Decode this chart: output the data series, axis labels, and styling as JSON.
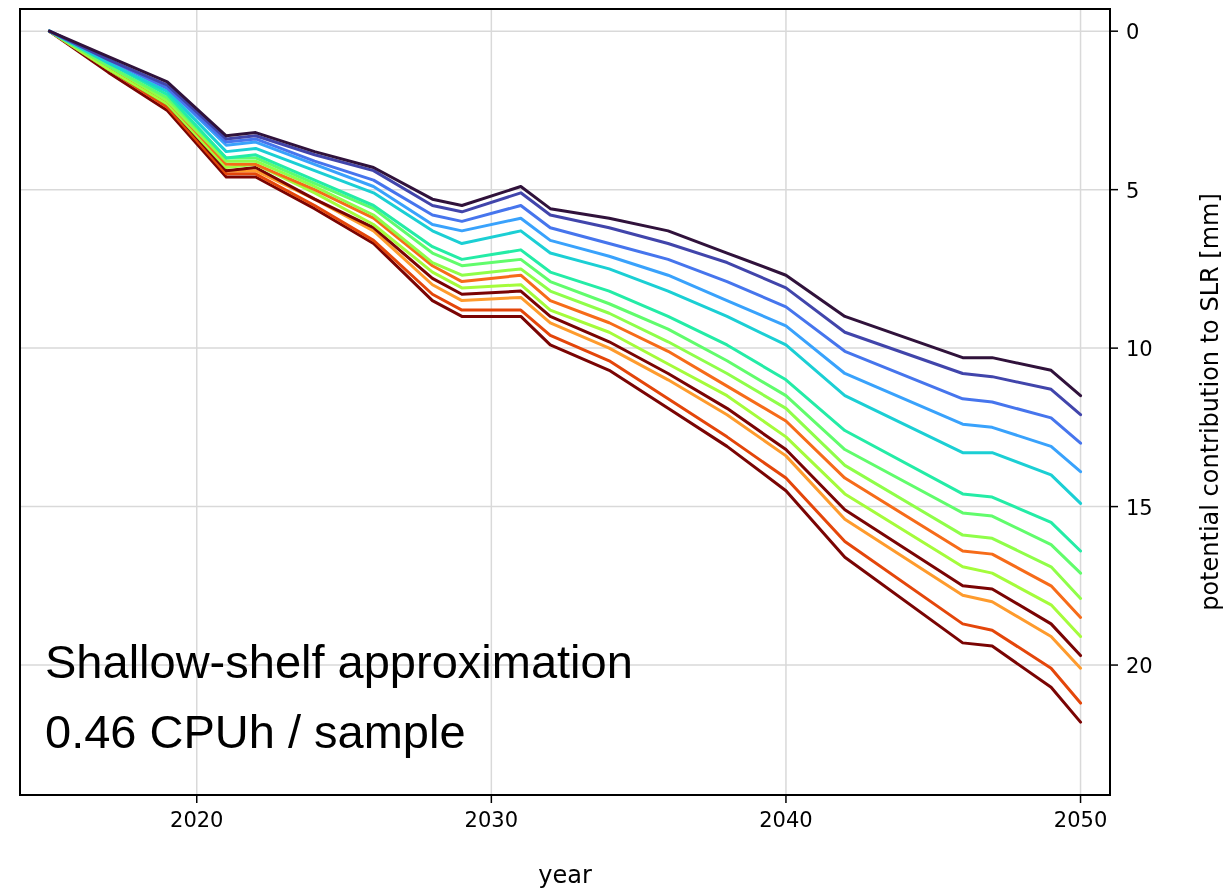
{
  "chart_data": {
    "type": "line",
    "xlabel": "year",
    "y2label": "potential contribution to SLR [mm]",
    "annotations": [
      "Shallow-shelf approximation",
      "0.46 CPUh / sample"
    ],
    "x": [
      2015,
      2017,
      2019,
      2021,
      2022,
      2024,
      2026,
      2028,
      2029,
      2031,
      2032,
      2034,
      2036,
      2038,
      2040,
      2042,
      2046,
      2047,
      2049,
      2050
    ],
    "xlim": [
      2014,
      2051
    ],
    "xticks": [
      2020,
      2030,
      2040,
      2050
    ],
    "y2lim": [
      24.1,
      -0.7
    ],
    "y2ticks": [
      0,
      5,
      10,
      15,
      20
    ],
    "tick_labels": [
      "x",
      "y2"
    ],
    "grid": true,
    "marker": "none",
    "line_style": "solid",
    "series": [
      {
        "axis": "y2",
        "color": "#7a0403",
        "values": [
          0,
          1.3,
          2.5,
          4.6,
          4.6,
          5.6,
          6.7,
          8.5,
          9.0,
          9.0,
          9.9,
          10.7,
          11.9,
          13.1,
          14.5,
          16.6,
          19.3,
          19.4,
          20.7,
          21.8
        ]
      },
      {
        "axis": "y2",
        "color": "#e4460a",
        "values": [
          0,
          1.2,
          2.4,
          4.5,
          4.5,
          5.5,
          6.6,
          8.3,
          8.8,
          8.8,
          9.6,
          10.4,
          11.6,
          12.8,
          14.1,
          16.1,
          18.7,
          18.9,
          20.1,
          21.2
        ]
      },
      {
        "axis": "y2",
        "color": "#fe9b2d",
        "values": [
          0,
          1.2,
          2.3,
          4.4,
          4.4,
          5.3,
          6.3,
          8.0,
          8.5,
          8.4,
          9.2,
          10.0,
          11.0,
          12.1,
          13.4,
          15.4,
          17.8,
          18.0,
          19.1,
          20.1
        ]
      },
      {
        "axis": "y2",
        "color": "#7a0403",
        "values": [
          0,
          1.2,
          2.3,
          4.4,
          4.3,
          5.3,
          6.2,
          7.8,
          8.3,
          8.2,
          9.0,
          9.8,
          10.8,
          11.9,
          13.2,
          15.1,
          17.5,
          17.6,
          18.7,
          19.7
        ]
      },
      {
        "axis": "y2",
        "color": "#a4fc3b",
        "values": [
          0,
          1.2,
          2.3,
          4.3,
          4.2,
          5.1,
          6.1,
          7.6,
          8.1,
          8.0,
          8.8,
          9.5,
          10.5,
          11.5,
          12.8,
          14.6,
          16.9,
          17.1,
          18.1,
          19.1
        ]
      },
      {
        "axis": "y2",
        "color": "#f66b19",
        "values": [
          0,
          1.1,
          2.2,
          4.2,
          4.2,
          5.0,
          5.9,
          7.4,
          7.9,
          7.7,
          8.5,
          9.2,
          10.1,
          11.2,
          12.3,
          14.1,
          16.4,
          16.5,
          17.5,
          18.5
        ]
      },
      {
        "axis": "y2",
        "color": "#8ffe49",
        "values": [
          0,
          1.1,
          2.2,
          4.1,
          4.1,
          4.9,
          5.8,
          7.3,
          7.7,
          7.5,
          8.2,
          8.9,
          9.8,
          10.8,
          11.9,
          13.7,
          15.9,
          16.0,
          16.9,
          17.9
        ]
      },
      {
        "axis": "y2",
        "color": "#61fc6c",
        "values": [
          0,
          1.1,
          2.1,
          4.0,
          4.0,
          4.8,
          5.6,
          7.0,
          7.4,
          7.2,
          7.9,
          8.6,
          9.4,
          10.4,
          11.5,
          13.2,
          15.2,
          15.3,
          16.2,
          17.1
        ]
      },
      {
        "axis": "y2",
        "color": "#24eca6",
        "values": [
          0,
          1.0,
          2.0,
          4.0,
          3.9,
          4.7,
          5.5,
          6.8,
          7.2,
          6.9,
          7.6,
          8.2,
          9.0,
          9.9,
          11.0,
          12.6,
          14.6,
          14.7,
          15.5,
          16.4
        ]
      },
      {
        "axis": "y2",
        "color": "#1bcfd4",
        "values": [
          0,
          1.0,
          1.9,
          3.8,
          3.7,
          4.4,
          5.1,
          6.3,
          6.7,
          6.3,
          7.0,
          7.5,
          8.2,
          9.0,
          9.9,
          11.5,
          13.3,
          13.3,
          14.0,
          14.9
        ]
      },
      {
        "axis": "y2",
        "color": "#39a2fc",
        "values": [
          0,
          0.9,
          1.8,
          3.6,
          3.5,
          4.2,
          4.9,
          6.1,
          6.3,
          5.9,
          6.6,
          7.1,
          7.7,
          8.5,
          9.3,
          10.8,
          12.4,
          12.5,
          13.1,
          13.9
        ]
      },
      {
        "axis": "y2",
        "color": "#4675ed",
        "values": [
          0,
          0.9,
          1.8,
          3.5,
          3.4,
          4.1,
          4.7,
          5.8,
          6.0,
          5.5,
          6.2,
          6.7,
          7.2,
          7.9,
          8.7,
          10.1,
          11.6,
          11.7,
          12.2,
          13.0
        ]
      },
      {
        "axis": "y2",
        "color": "#4145ab",
        "values": [
          0,
          0.9,
          1.7,
          3.4,
          3.3,
          3.9,
          4.4,
          5.5,
          5.7,
          5.1,
          5.8,
          6.2,
          6.7,
          7.3,
          8.1,
          9.5,
          10.8,
          10.9,
          11.3,
          12.1
        ]
      },
      {
        "axis": "y2",
        "color": "#30123b",
        "values": [
          0,
          0.8,
          1.6,
          3.3,
          3.2,
          3.8,
          4.3,
          5.3,
          5.5,
          4.9,
          5.6,
          5.9,
          6.3,
          7.0,
          7.7,
          9.0,
          10.3,
          10.3,
          10.7,
          11.5
        ]
      }
    ]
  }
}
